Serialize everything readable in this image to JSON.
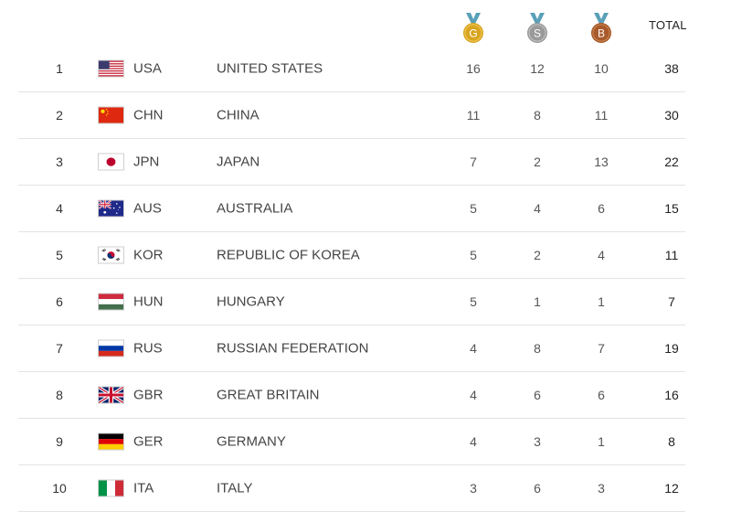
{
  "header": {
    "gold_letter": "G",
    "silver_letter": "S",
    "bronze_letter": "B",
    "total_label": "TOTAL",
    "colors": {
      "gold": "#d9a520",
      "silver": "#9a9a9a",
      "bronze": "#a85a2a",
      "ribbon": "#5aa0b8"
    }
  },
  "rows": [
    {
      "rank": "1",
      "flag": "usa-flag-icon",
      "code": "USA",
      "country": "UNITED STATES",
      "gold": "16",
      "silver": "12",
      "bronze": "10",
      "total": "38"
    },
    {
      "rank": "2",
      "flag": "china-flag-icon",
      "code": "CHN",
      "country": "CHINA",
      "gold": "11",
      "silver": "8",
      "bronze": "11",
      "total": "30"
    },
    {
      "rank": "3",
      "flag": "japan-flag-icon",
      "code": "JPN",
      "country": "JAPAN",
      "gold": "7",
      "silver": "2",
      "bronze": "13",
      "total": "22"
    },
    {
      "rank": "4",
      "flag": "australia-flag-icon",
      "code": "AUS",
      "country": "AUSTRALIA",
      "gold": "5",
      "silver": "4",
      "bronze": "6",
      "total": "15"
    },
    {
      "rank": "5",
      "flag": "korea-flag-icon",
      "code": "KOR",
      "country": "REPUBLIC OF KOREA",
      "gold": "5",
      "silver": "2",
      "bronze": "4",
      "total": "11"
    },
    {
      "rank": "6",
      "flag": "hungary-flag-icon",
      "code": "HUN",
      "country": "HUNGARY",
      "gold": "5",
      "silver": "1",
      "bronze": "1",
      "total": "7"
    },
    {
      "rank": "7",
      "flag": "russia-flag-icon",
      "code": "RUS",
      "country": "RUSSIAN FEDERATION",
      "gold": "4",
      "silver": "8",
      "bronze": "7",
      "total": "19"
    },
    {
      "rank": "8",
      "flag": "great-britain-flag-icon",
      "code": "GBR",
      "country": "GREAT BRITAIN",
      "gold": "4",
      "silver": "6",
      "bronze": "6",
      "total": "16"
    },
    {
      "rank": "9",
      "flag": "germany-flag-icon",
      "code": "GER",
      "country": "GERMANY",
      "gold": "4",
      "silver": "3",
      "bronze": "1",
      "total": "8"
    },
    {
      "rank": "10",
      "flag": "italy-flag-icon",
      "code": "ITA",
      "country": "ITALY",
      "gold": "3",
      "silver": "6",
      "bronze": "3",
      "total": "12"
    }
  ]
}
